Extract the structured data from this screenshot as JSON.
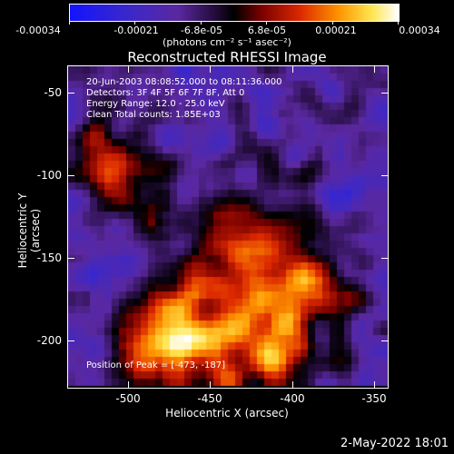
{
  "colorbar": {
    "labels": [
      "-0.00034",
      "-0.00021",
      "-6.8e-05",
      "6.8e-05",
      "0.00021",
      "0.00034"
    ],
    "units": "(photons cm⁻² s⁻¹ asec⁻²)"
  },
  "plot": {
    "title": "Reconstructed RHESSI Image",
    "info_lines": [
      "20-Jun-2003 08:08:52.000 to 08:11:36.000",
      "Detectors: 3F 4F 5F 6F 7F 8F, Att 0",
      "Energy Range: 12.0 - 25.0 keV",
      "Clean    Total counts: 1.85E+03"
    ],
    "peak_text": "Position of Peak = [-473, -187]",
    "xlabel": "Heliocentric X (arcsec)",
    "ylabel": "Heliocentric Y (arcsec)",
    "x_ticks": [
      "-500",
      "-450",
      "-400",
      "-350"
    ],
    "y_ticks": [
      "-50",
      "-100",
      "-150",
      "-200"
    ]
  },
  "footer": {
    "date": "2-May-2022 18:01"
  }
}
